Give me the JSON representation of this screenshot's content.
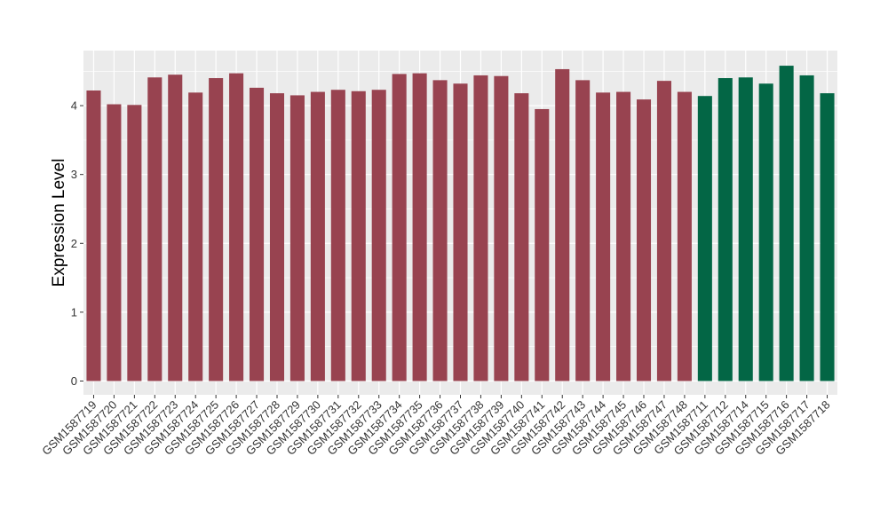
{
  "chart_data": {
    "type": "bar",
    "ylabel": "Expression Level",
    "xlabel": "",
    "ylim": [
      -0.2,
      4.8
    ],
    "yticks": [
      0,
      1,
      2,
      3,
      4
    ],
    "grid": true,
    "categories": [
      "GSM1587719",
      "GSM1587720",
      "GSM1587721",
      "GSM1587722",
      "GSM1587723",
      "GSM1587724",
      "GSM1587725",
      "GSM1587726",
      "GSM1587727",
      "GSM1587728",
      "GSM1587729",
      "GSM1587730",
      "GSM1587731",
      "GSM1587732",
      "GSM1587733",
      "GSM1587734",
      "GSM1587735",
      "GSM1587736",
      "GSM1587737",
      "GSM1587738",
      "GSM1587739",
      "GSM1587740",
      "GSM1587741",
      "GSM1587742",
      "GSM1587743",
      "GSM1587744",
      "GSM1587745",
      "GSM1587746",
      "GSM1587747",
      "GSM1587748",
      "GSM1587711",
      "GSM1587712",
      "GSM1587714",
      "GSM1587715",
      "GSM1587716",
      "GSM1587717",
      "GSM1587718"
    ],
    "values": [
      4.22,
      4.02,
      4.01,
      4.41,
      4.45,
      4.19,
      4.4,
      4.47,
      4.26,
      4.18,
      4.15,
      4.2,
      4.23,
      4.21,
      4.23,
      4.46,
      4.47,
      4.37,
      4.32,
      4.44,
      4.43,
      4.18,
      3.95,
      4.53,
      4.37,
      4.19,
      4.2,
      4.09,
      4.36,
      4.2,
      4.14,
      4.4,
      4.41,
      4.32,
      4.58,
      4.44,
      4.18
    ],
    "groups": [
      "g1",
      "g1",
      "g1",
      "g1",
      "g1",
      "g1",
      "g1",
      "g1",
      "g1",
      "g1",
      "g1",
      "g1",
      "g1",
      "g1",
      "g1",
      "g1",
      "g1",
      "g1",
      "g1",
      "g1",
      "g1",
      "g1",
      "g1",
      "g1",
      "g1",
      "g1",
      "g1",
      "g1",
      "g1",
      "g1",
      "g2",
      "g2",
      "g2",
      "g2",
      "g2",
      "g2",
      "g2"
    ],
    "group_colors": {
      "g1": "#984350",
      "g2": "#036645"
    },
    "panel_background": "#ebebeb",
    "grid_color": "#ffffff"
  }
}
